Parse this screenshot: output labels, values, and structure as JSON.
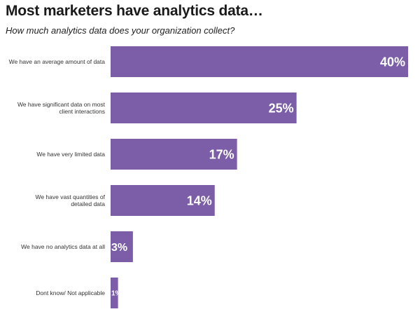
{
  "title": "Most marketers have analytics data…",
  "subtitle": "How much analytics data does your organization collect?",
  "colors": {
    "bar": "#7b5ea7",
    "bar_label": "#ffffff",
    "category_text": "#333333"
  },
  "chart_data": {
    "type": "bar",
    "orientation": "horizontal",
    "categories": [
      "We have an average amount of data",
      "We have significant data on most client interactions",
      "We have very limited data",
      "We have vast quantities of detailed data",
      "We have no analytics data at all",
      "Dont know/ Not applicable"
    ],
    "values": [
      40,
      25,
      17,
      14,
      3,
      1
    ],
    "data_labels": [
      "40%",
      "25%",
      "17%",
      "14%",
      "3%",
      "1%"
    ],
    "unit": "%",
    "xlim": [
      0,
      40
    ],
    "grid": false,
    "legend": "none"
  }
}
